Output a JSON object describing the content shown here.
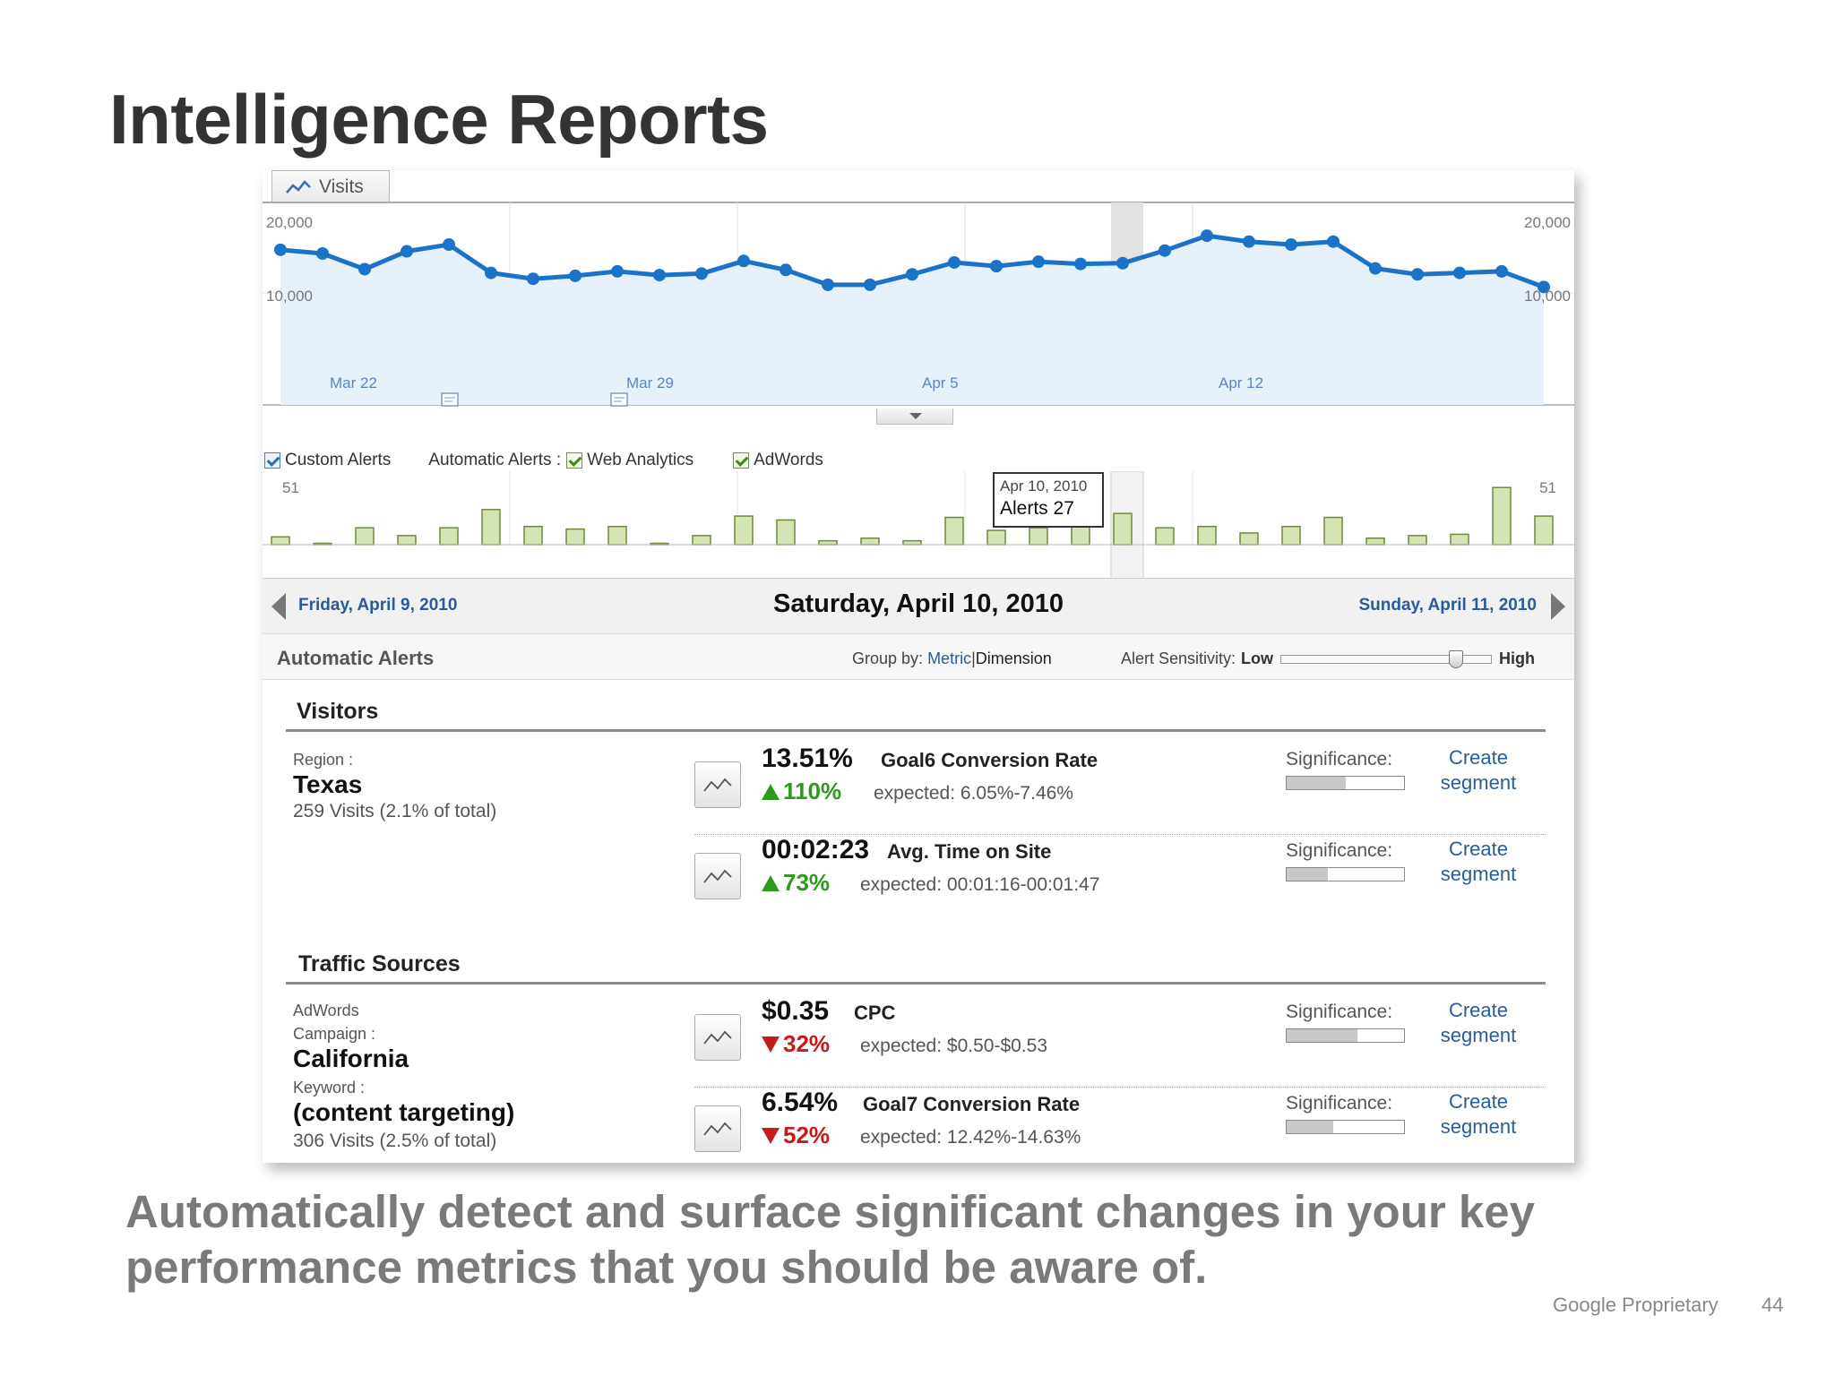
{
  "slide": {
    "title": "Intelligence Reports",
    "caption": "Automatically detect and surface significant changes in your key performance metrics that you should be aware of.",
    "footer_label": "Google Proprietary",
    "page_number": "44"
  },
  "visits_tab": {
    "label": "Visits",
    "icon": "line-chart-icon"
  },
  "visits_chart": {
    "y_max_label": "20,000",
    "y_mid_label": "10,000",
    "x_labels": [
      "Mar 22",
      "Mar 29",
      "Apr 5",
      "Apr 12"
    ],
    "highlight_color": "#1a73c8",
    "values": [
      15800,
      15300,
      13200,
      15600,
      16500,
      12700,
      11900,
      12300,
      12900,
      12400,
      12600,
      14300,
      13100,
      11100,
      11100,
      12500,
      14100,
      13600,
      14200,
      13900,
      14000,
      15700,
      17700,
      16900,
      16500,
      16900,
      13300,
      12500,
      12700,
      12900,
      10800
    ]
  },
  "alert_filters": {
    "custom": "Custom Alerts",
    "automatic": "Automatic Alerts :",
    "web": "Web Analytics",
    "adwords": "AdWords"
  },
  "alerts_chart": {
    "y_max_label": "51",
    "values": [
      6,
      1,
      13,
      7,
      13,
      27,
      14,
      12,
      14,
      0,
      7,
      22,
      19,
      3,
      5,
      3,
      21,
      11,
      13,
      14,
      24,
      13,
      14,
      9,
      14,
      21,
      5,
      7,
      8,
      44,
      22
    ]
  },
  "tooltip": {
    "date": "Apr 10, 2010",
    "alerts": "Alerts 27"
  },
  "date_nav": {
    "prev": "Friday, April 9, 2010",
    "current": "Saturday, April 10, 2010",
    "next": "Sunday, April 11, 2010"
  },
  "auto_alerts": {
    "title": "Automatic Alerts",
    "group_by_label": "Group by:",
    "group_metric": "Metric",
    "group_sep": "|",
    "group_dimension": "Dimension",
    "sensitivity_label": "Alert Sensitivity:",
    "low": "Low",
    "high": "High",
    "sensitivity_level": 0.85
  },
  "sections": {
    "visitors": {
      "title": "Visitors",
      "region_key": "Region :",
      "region_value": "Texas",
      "visits": "259 Visits (2.1% of total)",
      "alerts": [
        {
          "value": "13.51%",
          "metric": "Goal6 Conversion Rate",
          "change": "110%",
          "direction": "up",
          "expected": "expected: 6.05%-7.46%",
          "significance_label": "Significance:",
          "significance": 0.5,
          "create_line1": "Create",
          "create_line2": "segment"
        },
        {
          "value": "00:02:23",
          "metric": "Avg. Time on Site",
          "change": "73%",
          "direction": "up",
          "expected": "expected: 00:01:16-00:01:47",
          "significance_label": "Significance:",
          "significance": 0.35,
          "create_line1": "Create",
          "create_line2": "segment"
        }
      ]
    },
    "traffic": {
      "title": "Traffic Sources",
      "adwords_key": "AdWords",
      "campaign_key": "Campaign :",
      "campaign_value": "California",
      "keyword_key": "Keyword :",
      "keyword_value": "(content targeting)",
      "visits": "306 Visits (2.5% of total)",
      "alerts": [
        {
          "value": "$0.35",
          "metric": "CPC",
          "change": "32%",
          "direction": "down",
          "expected": "expected: $0.50-$0.53",
          "significance_label": "Significance:",
          "significance": 0.6,
          "create_line1": "Create",
          "create_line2": "segment"
        },
        {
          "value": "6.54%",
          "metric": "Goal7 Conversion Rate",
          "change": "52%",
          "direction": "down",
          "expected": "expected: 12.42%-14.63%",
          "significance_label": "Significance:",
          "significance": 0.4,
          "create_line1": "Create",
          "create_line2": "segment"
        }
      ]
    }
  }
}
